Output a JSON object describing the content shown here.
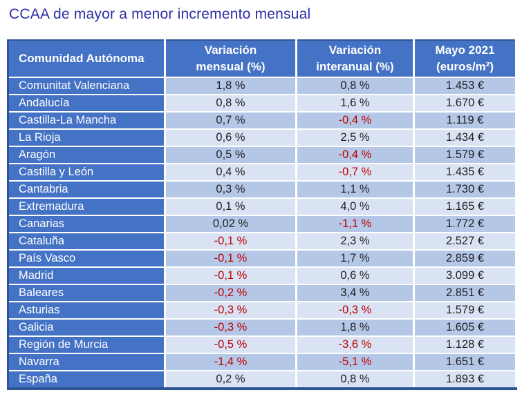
{
  "colors": {
    "title_text": "#2d2da4",
    "header_bg": "#4472C4",
    "row_odd_bg": "#B4C7E7",
    "row_even_bg": "#DAE3F3",
    "outer_border": "#2F5496",
    "value_text": "#1f1f1f",
    "negative_text": "#C00000",
    "header_text": "#ffffff"
  },
  "chart_data": {
    "type": "table",
    "title": "CCAA de mayor a menor incremento mensual",
    "columns": [
      "Comunidad Autónoma",
      "Variación\nmensual (%)",
      "Variación\ninteranual (%)",
      "Mayo 2021\n(euros/m²)"
    ],
    "rows": [
      {
        "ccaa": "Comunitat Valenciana",
        "variacion_mensual": "1,8 %",
        "variacion_interanual": "0,8 %",
        "mayo_2021": "1.453 €"
      },
      {
        "ccaa": "Andalucía",
        "variacion_mensual": "0,8 %",
        "variacion_interanual": "1,6 %",
        "mayo_2021": "1.670 €"
      },
      {
        "ccaa": "Castilla-La Mancha",
        "variacion_mensual": "0,7 %",
        "variacion_interanual": "-0,4 %",
        "mayo_2021": "1.119 €"
      },
      {
        "ccaa": "La Rioja",
        "variacion_mensual": "0,6 %",
        "variacion_interanual": "2,5 %",
        "mayo_2021": "1.434 €"
      },
      {
        "ccaa": "Aragón",
        "variacion_mensual": "0,5 %",
        "variacion_interanual": "-0,4 %",
        "mayo_2021": "1.579 €"
      },
      {
        "ccaa": "Castilla y León",
        "variacion_mensual": "0,4 %",
        "variacion_interanual": "-0,7 %",
        "mayo_2021": "1.435 €"
      },
      {
        "ccaa": "Cantabria",
        "variacion_mensual": "0,3 %",
        "variacion_interanual": "1,1 %",
        "mayo_2021": "1.730 €"
      },
      {
        "ccaa": "Extremadura",
        "variacion_mensual": "0,1 %",
        "variacion_interanual": "4,0 %",
        "mayo_2021": "1.165 €"
      },
      {
        "ccaa": "Canarias",
        "variacion_mensual": "0,02 %",
        "variacion_interanual": "-1,1 %",
        "mayo_2021": "1.772 €"
      },
      {
        "ccaa": "Cataluña",
        "variacion_mensual": "-0,1 %",
        "variacion_interanual": "2,3 %",
        "mayo_2021": "2.527 €"
      },
      {
        "ccaa": "País Vasco",
        "variacion_mensual": "-0,1 %",
        "variacion_interanual": "1,7 %",
        "mayo_2021": "2.859 €"
      },
      {
        "ccaa": "Madrid",
        "variacion_mensual": "-0,1 %",
        "variacion_interanual": "0,6 %",
        "mayo_2021": "3.099 €"
      },
      {
        "ccaa": "Baleares",
        "variacion_mensual": "-0,2 %",
        "variacion_interanual": "3,4 %",
        "mayo_2021": "2.851 €"
      },
      {
        "ccaa": "Asturias",
        "variacion_mensual": "-0,3 %",
        "variacion_interanual": "-0,3 %",
        "mayo_2021": "1.579 €"
      },
      {
        "ccaa": "Galicia",
        "variacion_mensual": "-0,3 %",
        "variacion_interanual": "1,8 %",
        "mayo_2021": "1.605 €"
      },
      {
        "ccaa": "Región de Murcia",
        "variacion_mensual": "-0,5 %",
        "variacion_interanual": "-3,6 %",
        "mayo_2021": "1.128 €"
      },
      {
        "ccaa": "Navarra",
        "variacion_mensual": "-1,4 %",
        "variacion_interanual": "-5,1 %",
        "mayo_2021": "1.651 €"
      },
      {
        "ccaa": "España",
        "variacion_mensual": "0,2 %",
        "variacion_interanual": "0,8 %",
        "mayo_2021": "1.893 €"
      }
    ]
  }
}
